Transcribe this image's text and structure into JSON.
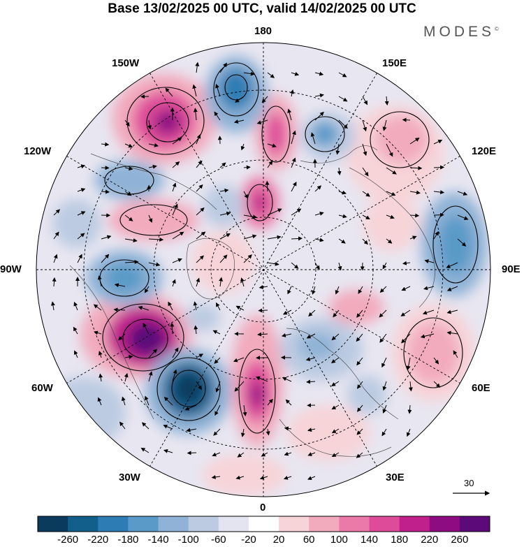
{
  "header": {
    "title": "Base 13/02/2025 00 UTC, valid 14/02/2025 00 UTC",
    "brand": "MODES",
    "brand_mark": "©"
  },
  "map": {
    "projection": "north polar stereographic",
    "longitude_labels": {
      "top": "180",
      "top_left": "150W",
      "top_right": "150E",
      "upper_left": "120W",
      "upper_right": "120E",
      "left": "90W",
      "right": "90E",
      "lower_left": "60W",
      "lower_right": "60E",
      "bottom_left": "30W",
      "bottom_right": "30E",
      "bottom": "0"
    },
    "reference_vector_label": "30"
  },
  "colorbar": {
    "labels": [
      "-260",
      "-220",
      "-180",
      "-140",
      "-100",
      "-60",
      "-20",
      "20",
      "60",
      "100",
      "140",
      "180",
      "220",
      "260"
    ],
    "colors": [
      "#0a3a5c",
      "#135f8c",
      "#2d7db4",
      "#5a9ac8",
      "#8fb2d6",
      "#bccbe2",
      "#e4e4f0",
      "#ffffff",
      "#f7d4d8",
      "#f2aabd",
      "#ec7aa8",
      "#de4c99",
      "#c0208b",
      "#8e0c82",
      "#5c0a7a"
    ]
  }
}
